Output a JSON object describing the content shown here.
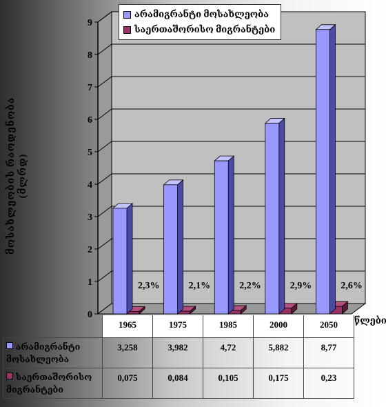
{
  "chart_data": {
    "type": "bar",
    "categories": [
      "1965",
      "1975",
      "1985",
      "2000",
      "2050"
    ],
    "series": [
      {
        "name": "არამიგრანტი მოსახლეობა",
        "values": [
          3.258,
          3.982,
          4.72,
          5.882,
          8.77
        ],
        "value_labels": [
          "3,258",
          "3,982",
          "4,72",
          "5,882",
          "8,77"
        ],
        "color": "#9999ff"
      },
      {
        "name": "საერთაშორისო მიგრანტები",
        "values": [
          0.075,
          0.084,
          0.105,
          0.175,
          0.23
        ],
        "value_labels": [
          "0,075",
          "0,084",
          "0,105",
          "0,175",
          "0,23"
        ],
        "color": "#993366"
      }
    ],
    "percent_labels": [
      "2,3%",
      "2,1%",
      "2,2%",
      "2,9%",
      "2,6%"
    ],
    "ylim": [
      0,
      9
    ],
    "yticks": [
      "0",
      "1",
      "2",
      "3",
      "4",
      "5",
      "6",
      "7",
      "8",
      "9"
    ],
    "ylabel_line1": "მოსახლეობის რაოდენობა",
    "ylabel_line2": "(მლრდ)",
    "xlabel": "წლები",
    "legend_position": "top",
    "grid": true
  },
  "table": {
    "row1_label_line1": "არამიგრანტი",
    "row1_label_line2": "მოსახლეობა",
    "row2_label_line1": "საერთაშორისო",
    "row2_label_line2": "მიგრანტები"
  },
  "colors": {
    "plot_wall": "#c0c0c0",
    "floor": "#9a9a9a",
    "grid": "#000000"
  }
}
